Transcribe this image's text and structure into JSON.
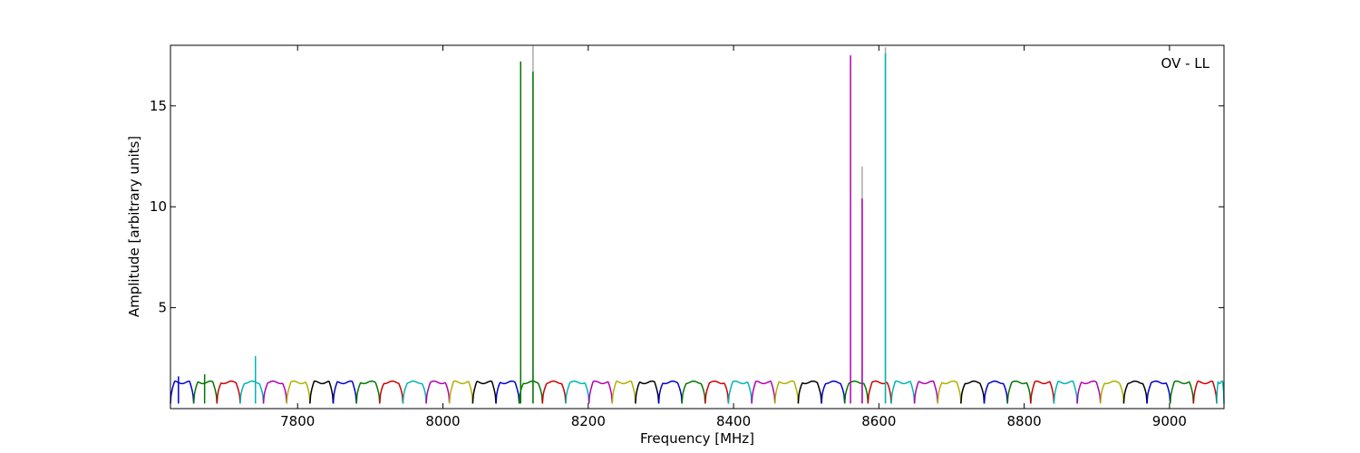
{
  "chart_data": {
    "type": "line",
    "title": "",
    "annotation": "OV - LL",
    "xlabel": "Frequency [MHz]",
    "ylabel": "Amplitude [arbitrary units]",
    "xlim": [
      7625,
      9075
    ],
    "ylim": [
      0,
      18
    ],
    "xticks": [
      7800,
      8000,
      8200,
      8400,
      8600,
      8800,
      9000
    ],
    "yticks": [
      5,
      10,
      15
    ],
    "grid": false,
    "legend": "none",
    "channel_width_mhz": 32,
    "channel_start_mhz": 7625,
    "channel_colors": [
      "#0000cc",
      "#007700",
      "#cc0000",
      "#00b5b5",
      "#b000b0",
      "#b0b000",
      "#000000"
    ],
    "peak_level": 1.3,
    "trough_level": 0.25,
    "spikes": [
      {
        "x": 7636,
        "y": 1.6,
        "color": "#0000cc"
      },
      {
        "x": 7672,
        "y": 1.7,
        "color": "#007700"
      },
      {
        "x": 7742,
        "y": 2.6,
        "color": "#00b5b5"
      },
      {
        "x": 8107,
        "y": 17.2,
        "color": "#007700"
      },
      {
        "x": 8124,
        "y": 18.0,
        "color": "#aaaaaa"
      },
      {
        "x": 8124,
        "y": 16.7,
        "color": "#007700"
      },
      {
        "x": 8561,
        "y": 17.5,
        "color": "#b000b0"
      },
      {
        "x": 8577,
        "y": 12.0,
        "color": "#aaaaaa"
      },
      {
        "x": 8577,
        "y": 10.4,
        "color": "#b000b0"
      },
      {
        "x": 8609,
        "y": 17.9,
        "color": "#aaaaaa"
      },
      {
        "x": 8609,
        "y": 17.6,
        "color": "#00b5b5"
      }
    ]
  }
}
